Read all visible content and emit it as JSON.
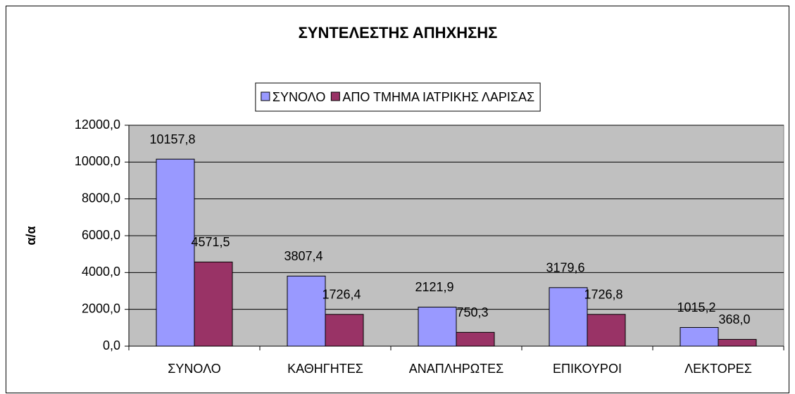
{
  "chart_data": {
    "type": "bar",
    "title": "ΣΥΝΤΕΛΕΣΤΗΣ ΑΠΗΧΗΣΗΣ",
    "y_label": "α/α",
    "categories": [
      "ΣΥΝΟΛΟ",
      "ΚΑΘΗΓΗΤΕΣ",
      "ΑΝΑΠΛΗΡΩΤΕΣ",
      "ΕΠΙΚΟΥΡΟΙ",
      "ΛΕΚΤΟΡΕΣ"
    ],
    "series": [
      {
        "name": "ΣΥΝΟΛΟ",
        "color": "#9999ff",
        "values": [
          10157.8,
          3807.4,
          2121.9,
          3179.6,
          1015.2
        ],
        "value_labels": [
          "10157,8",
          "3807,4",
          "2121,9",
          "3179,6",
          "1015,2"
        ]
      },
      {
        "name": "ΑΠΟ ΤΜΗΜΑ ΙΑΤΡΙΚΗΣ ΛΑΡΙΣΑΣ",
        "color": "#993366",
        "values": [
          4571.5,
          1726.4,
          750.3,
          1726.8,
          368.0
        ],
        "value_labels": [
          "4571,5",
          "1726,4",
          "750,3",
          "1726,8",
          "368,0"
        ]
      }
    ],
    "ylim": [
      0,
      12000
    ],
    "yticks": [
      {
        "value": 0,
        "label": "0,0"
      },
      {
        "value": 2000,
        "label": "2000,0"
      },
      {
        "value": 4000,
        "label": "4000,0"
      },
      {
        "value": 6000,
        "label": "6000,0"
      },
      {
        "value": 8000,
        "label": "8000,0"
      },
      {
        "value": 10000,
        "label": "10000,0"
      },
      {
        "value": 12000,
        "label": "12000,0"
      }
    ],
    "grid": true,
    "legend": "top",
    "plot_background": "#c0c0c0"
  }
}
